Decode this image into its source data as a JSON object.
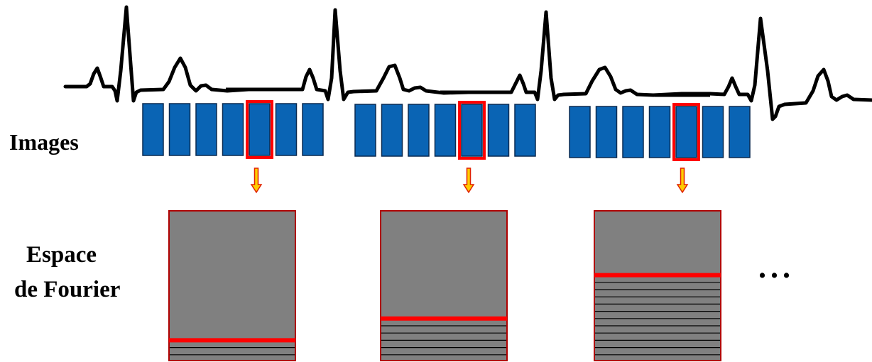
{
  "labels": {
    "images": "Images",
    "kspace_line1": "Espace",
    "kspace_line2": "de Fourier",
    "ellipsis": "..."
  },
  "colors": {
    "background": "#ffffff",
    "ecg_trace": "#000000",
    "frame_fill": "#0a64b4",
    "frame_stroke": "#0a2a50",
    "highlight": "#ff0000",
    "arrow_fill": "#ffcc00",
    "arrow_stroke": "#e02000",
    "kspace_fill": "#808080",
    "kspace_border": "#b00000",
    "kspace_lines": "#000000"
  },
  "icons": {
    "arrow": "down-arrow-icon"
  },
  "cardiac_cycles": [
    {
      "frames": 7,
      "selected_frame": 5,
      "filled_kspace_lines": 3
    },
    {
      "frames": 7,
      "selected_frame": 5,
      "filled_kspace_lines": 6
    },
    {
      "frames": 7,
      "selected_frame": 5,
      "filled_kspace_lines": 12
    }
  ]
}
